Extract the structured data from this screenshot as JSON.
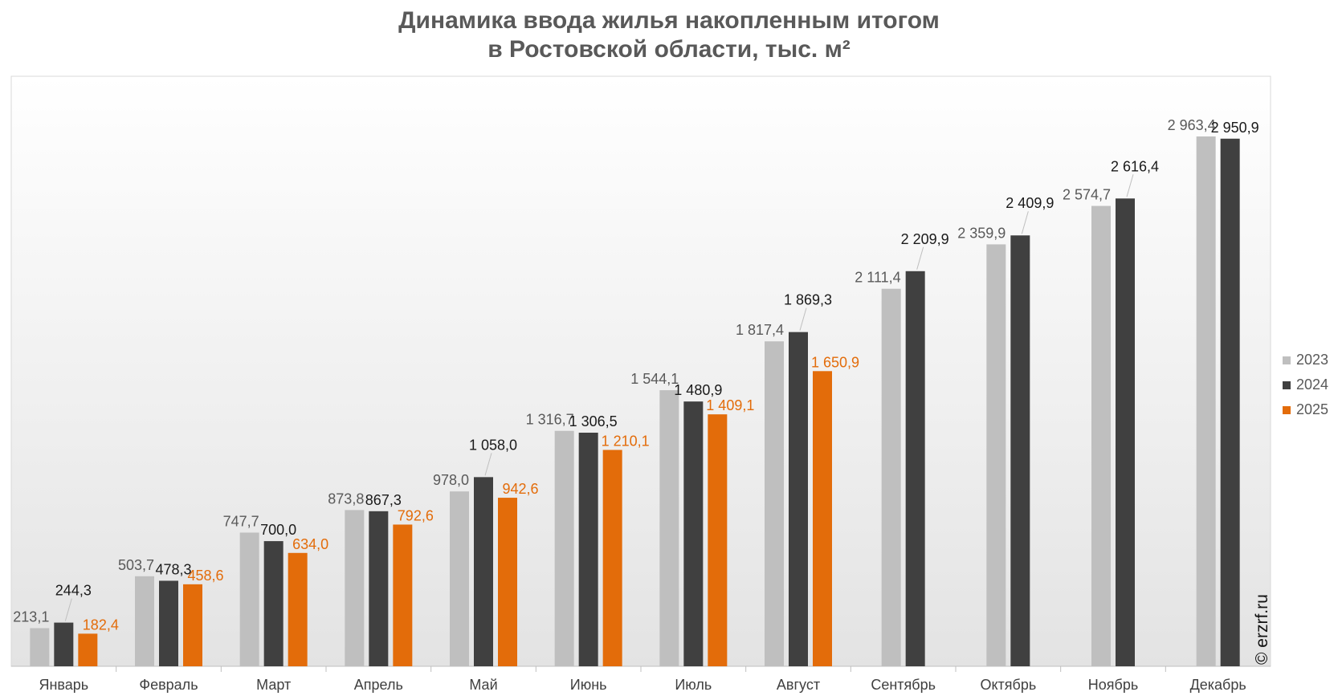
{
  "title_line1": "Динамика ввода жилья накопленным итогом",
  "title_line2": "в Ростовской области, тыс. м²",
  "watermark": "© erzrf.ru",
  "colors": {
    "s2023": "#BFBFBF",
    "s2024": "#404040",
    "s2025": "#E36C0A",
    "label2023": "#595959",
    "label2024": "#1a1a1a",
    "label2025": "#E36C0A",
    "axis_text": "#404040"
  },
  "chart_data": {
    "type": "bar",
    "title": "Динамика ввода жилья накопленным итогом в Ростовской области, тыс. м²",
    "xlabel": "",
    "ylabel": "",
    "ylim": [
      0,
      3300
    ],
    "grid": false,
    "legend_position": "right",
    "categories": [
      "Январь",
      "Февраль",
      "Март",
      "Апрель",
      "Май",
      "Июнь",
      "Июль",
      "Август",
      "Сентябрь",
      "Октябрь",
      "Ноябрь",
      "Декабрь"
    ],
    "series": [
      {
        "name": "2023",
        "values": [
          213.1,
          503.7,
          747.7,
          873.8,
          978.0,
          1316.7,
          1544.1,
          1817.4,
          2111.4,
          2359.9,
          2574.7,
          2963.4
        ],
        "labels": [
          "213,1",
          "503,7",
          "747,7",
          "873,8",
          "978,0",
          "1 316,7",
          "1 544,1",
          "1 817,4",
          "2 111,4",
          "2 359,9",
          "2 574,7",
          "2 963,4"
        ]
      },
      {
        "name": "2024",
        "values": [
          244.3,
          478.3,
          700.0,
          867.3,
          1058.0,
          1306.5,
          1480.9,
          1869.3,
          2209.9,
          2409.9,
          2616.4,
          2950.9
        ],
        "labels": [
          "244,3",
          "478,3",
          "700,0",
          "867,3",
          "1 058,0",
          "1 306,5",
          "1 480,9",
          "1 869,3",
          "2 209,9",
          "2 409,9",
          "2 616,4",
          "2 950,9"
        ]
      },
      {
        "name": "2025",
        "values": [
          182.4,
          458.6,
          634.0,
          792.6,
          942.6,
          1210.1,
          1409.1,
          1650.9,
          null,
          null,
          null,
          null
        ],
        "labels": [
          "182,4",
          "458,6",
          "634,0",
          "792,6",
          "942,6",
          "1 210,1",
          "1 409,1",
          "1 650,9",
          null,
          null,
          null,
          null
        ]
      }
    ]
  }
}
